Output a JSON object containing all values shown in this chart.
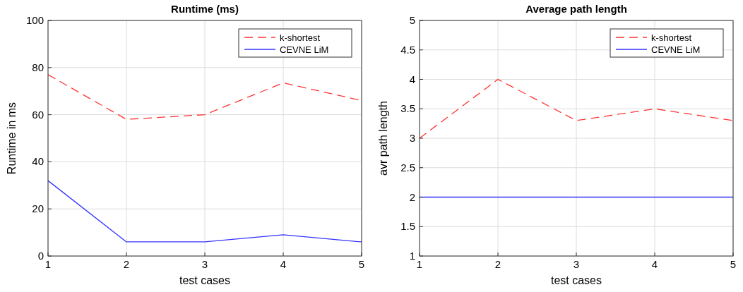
{
  "chart_data": [
    {
      "type": "line",
      "title": "Runtime (ms)",
      "xlabel": "test cases",
      "ylabel": "Runtime in ms",
      "x": [
        1,
        2,
        3,
        4,
        5
      ],
      "xlim": [
        1,
        5
      ],
      "xticks": [
        1,
        2,
        3,
        4,
        5
      ],
      "ylim": [
        0,
        100
      ],
      "yticks": [
        0,
        20,
        40,
        60,
        80,
        100
      ],
      "grid": true,
      "legend": "top right",
      "series": [
        {
          "name": "k-shortest",
          "color": "#ff3333",
          "line_style": "dashed",
          "values": [
            77,
            58,
            60,
            73.5,
            66
          ]
        },
        {
          "name": "CEVNE LiM",
          "color": "#3333ff",
          "line_style": "solid",
          "values": [
            32,
            6,
            6,
            9,
            6
          ]
        }
      ]
    },
    {
      "type": "line",
      "title": "Average path length",
      "xlabel": "test cases",
      "ylabel": "avr path length",
      "x": [
        1,
        2,
        3,
        4,
        5
      ],
      "xlim": [
        1,
        5
      ],
      "xticks": [
        1,
        2,
        3,
        4,
        5
      ],
      "ylim": [
        1,
        5
      ],
      "yticks": [
        1,
        1.5,
        2,
        2.5,
        3,
        3.5,
        4,
        4.5,
        5
      ],
      "grid": true,
      "legend": "top right",
      "series": [
        {
          "name": "k-shortest",
          "color": "#ff3333",
          "line_style": "dashed",
          "values": [
            3,
            4,
            3.3,
            3.5,
            3.3
          ]
        },
        {
          "name": "CEVNE LiM",
          "color": "#3333ff",
          "line_style": "solid",
          "values": [
            2,
            2,
            2,
            2,
            2
          ]
        }
      ]
    }
  ]
}
